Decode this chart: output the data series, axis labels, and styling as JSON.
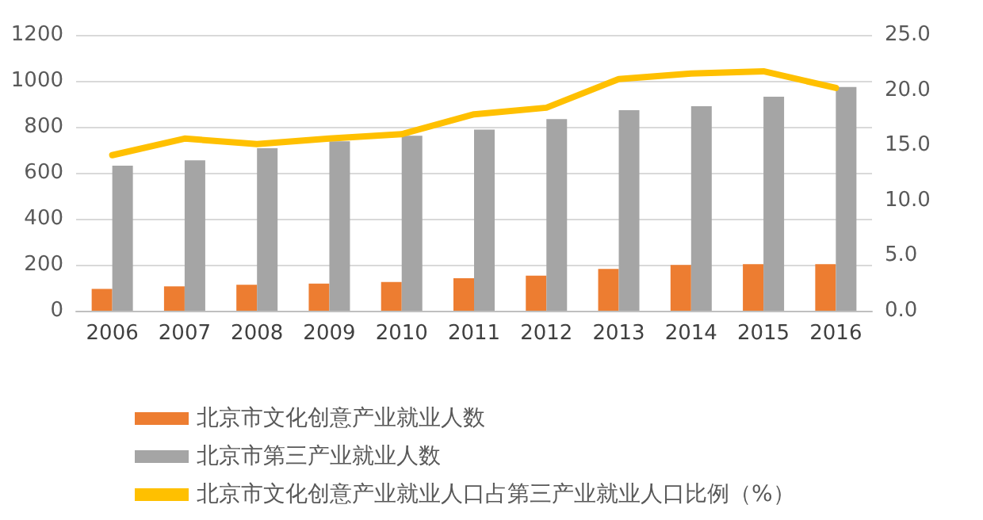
{
  "chart_data": {
    "type": "bar",
    "categories": [
      "2006",
      "2007",
      "2008",
      "2009",
      "2010",
      "2011",
      "2012",
      "2013",
      "2014",
      "2015",
      "2016"
    ],
    "series": [
      {
        "name": "北京市文化创意产业就业人数",
        "color": "#ed7d31",
        "values": [
          95,
          106,
          113,
          118,
          125,
          141,
          153,
          182,
          199,
          203,
          203
        ]
      },
      {
        "name": "北京市第三产业就业人数",
        "color": "#a5a5a5",
        "values": [
          631,
          654,
          707,
          737,
          761,
          788,
          834,
          872,
          890,
          931,
          973
        ]
      },
      {
        "name": "北京市文化创意产业就业人口占第三产业就业人口比例（%）",
        "type": "line",
        "axis": "y2",
        "color": "#ffc000",
        "values": [
          14.1,
          15.6,
          15.1,
          15.6,
          16.0,
          17.8,
          18.4,
          21.0,
          21.5,
          21.7,
          20.2
        ]
      }
    ],
    "ylim": [
      0,
      1200
    ],
    "yticks": [
      0,
      200,
      400,
      600,
      800,
      1000,
      1200
    ],
    "y2lim": [
      0,
      25
    ],
    "y2ticks": [
      {
        "value": 0,
        "label": "0.0"
      },
      {
        "value": 5,
        "label": "5.0"
      },
      {
        "value": 10,
        "label": "10.0"
      },
      {
        "value": 15,
        "label": "15.0"
      },
      {
        "value": 20,
        "label": "20.0"
      },
      {
        "value": 25,
        "label": "25.0"
      }
    ],
    "grid": "y",
    "legend": "bottom left",
    "marker": "none",
    "line_style": "solid"
  }
}
